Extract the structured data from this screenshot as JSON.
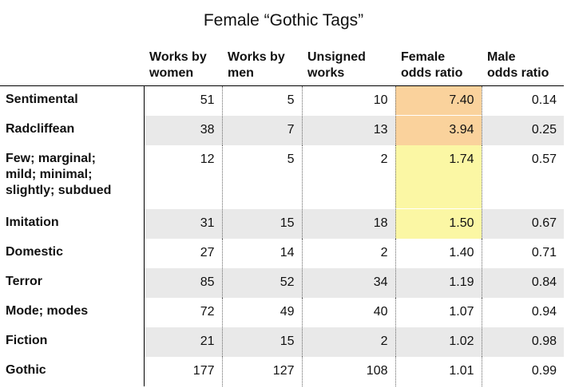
{
  "title": "Female “Gothic Tags”",
  "headers": [
    "",
    "Works by\nwomen",
    "Works by\nmen",
    "Unsigned\nworks",
    "Female\nodds ratio",
    "Male\nodds ratio"
  ],
  "rows": [
    {
      "label": "Sentimental",
      "women": "51",
      "men": "5",
      "unsigned": "10",
      "female_or": "7.40",
      "male_or": "0.14",
      "highlight": "#fad29c"
    },
    {
      "label": "Radcliffean",
      "women": "38",
      "men": "7",
      "unsigned": "13",
      "female_or": "3.94",
      "male_or": "0.25",
      "highlight": "#fad29c"
    },
    {
      "label": "Few; marginal;\nmild; minimal;\nslightly; subdued",
      "women": "12",
      "men": "5",
      "unsigned": "2",
      "female_or": "1.74",
      "male_or": "0.57",
      "highlight": "#fbf7a4"
    },
    {
      "label": "Imitation",
      "women": "31",
      "men": "15",
      "unsigned": "18",
      "female_or": "1.50",
      "male_or": "0.67",
      "highlight": "#fbf7a4"
    },
    {
      "label": "Domestic",
      "women": "27",
      "men": "14",
      "unsigned": "2",
      "female_or": "1.40",
      "male_or": "0.71"
    },
    {
      "label": "Terror",
      "women": "85",
      "men": "52",
      "unsigned": "34",
      "female_or": "1.19",
      "male_or": "0.84"
    },
    {
      "label": "Mode; modes",
      "women": "72",
      "men": "49",
      "unsigned": "40",
      "female_or": "1.07",
      "male_or": "0.94"
    },
    {
      "label": "Fiction",
      "women": "21",
      "men": "15",
      "unsigned": "2",
      "female_or": "1.02",
      "male_or": "0.98"
    },
    {
      "label": "Gothic",
      "women": "177",
      "men": "127",
      "unsigned": "108",
      "female_or": "1.01",
      "male_or": "0.99"
    }
  ]
}
